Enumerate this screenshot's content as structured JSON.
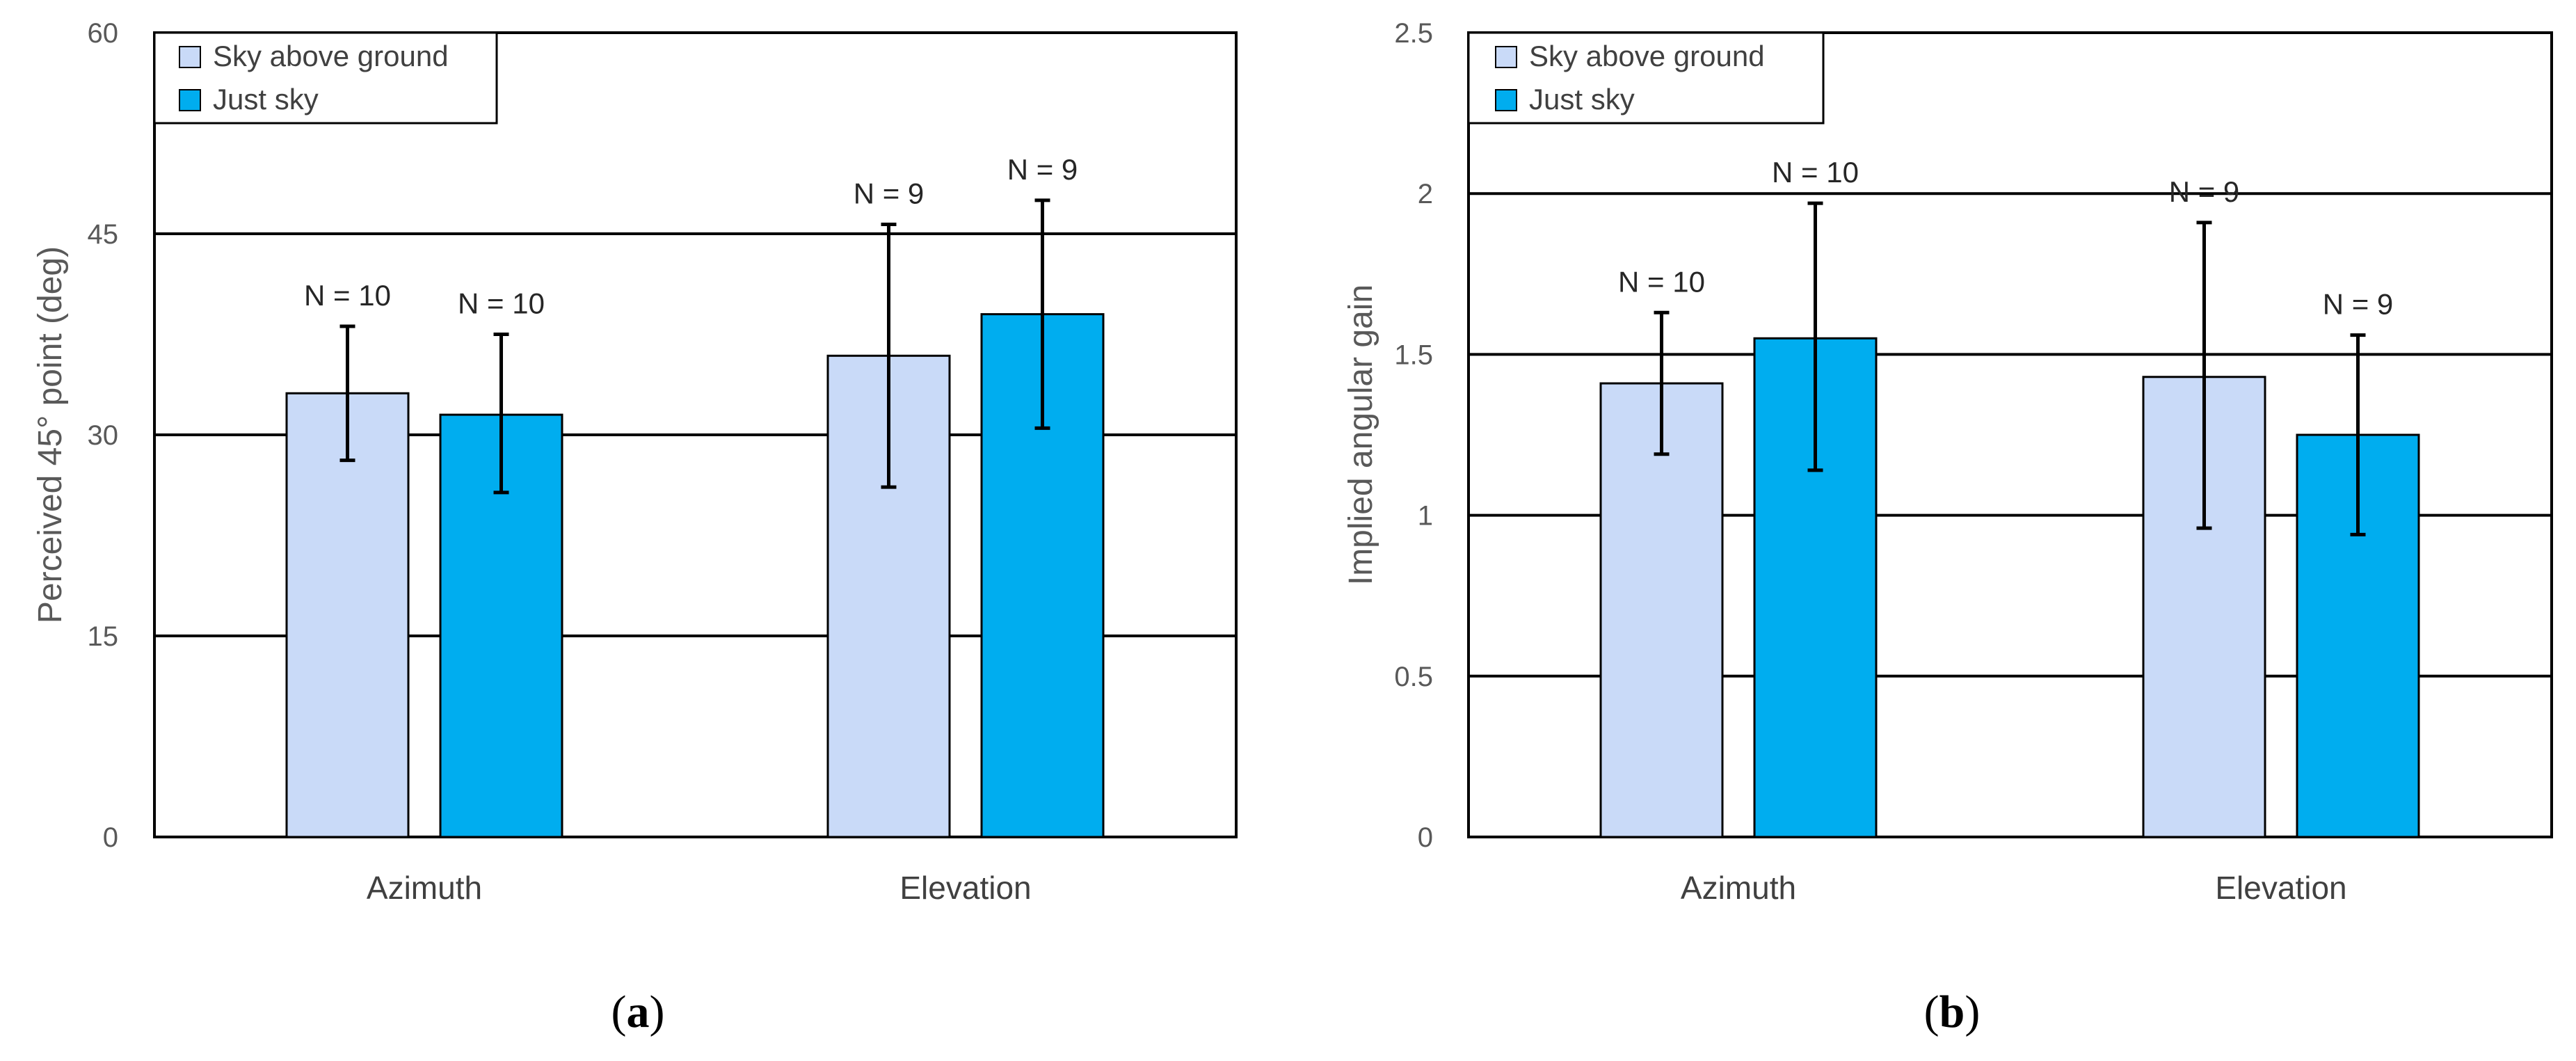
{
  "colors": {
    "sky_above_ground": "#c9daf8",
    "just_sky": "#00adef",
    "axis": "#000000",
    "grid": "#000000"
  },
  "chart_data": [
    {
      "type": "bar",
      "panel_label": "a",
      "ylabel": "Perceived 45° point (deg)",
      "xlabel": "",
      "ylim": [
        0,
        60
      ],
      "yticks": [
        0,
        15,
        30,
        45,
        60
      ],
      "ytick_labels": [
        "0",
        "15",
        "30",
        "45",
        "60"
      ],
      "grid": true,
      "legend_position": "top-left",
      "categories": [
        "Azimuth",
        "Elevation"
      ],
      "series": [
        {
          "name": "Sky above ground",
          "color_key": "sky_above_ground",
          "values": [
            33.1,
            35.9
          ],
          "err_low": [
            28.1,
            26.1
          ],
          "err_high": [
            38.1,
            45.7
          ],
          "n_labels": [
            "N = 10",
            "N = 9"
          ]
        },
        {
          "name": "Just sky",
          "color_key": "just_sky",
          "values": [
            31.5,
            39.0
          ],
          "err_low": [
            25.7,
            30.5
          ],
          "err_high": [
            37.5,
            47.5
          ],
          "n_labels": [
            "N = 10",
            "N = 9"
          ]
        }
      ]
    },
    {
      "type": "bar",
      "panel_label": "b",
      "ylabel": "Implied angular gain",
      "xlabel": "",
      "ylim": [
        0,
        2.5
      ],
      "yticks": [
        0,
        0.5,
        1,
        1.5,
        2,
        2.5
      ],
      "ytick_labels": [
        "0",
        "0.5",
        "1",
        "1.5",
        "2",
        "2.5"
      ],
      "grid": true,
      "legend_position": "top-left",
      "categories": [
        "Azimuth",
        "Elevation"
      ],
      "series": [
        {
          "name": "Sky above ground",
          "color_key": "sky_above_ground",
          "values": [
            1.41,
            1.43
          ],
          "err_low": [
            1.19,
            0.96
          ],
          "err_high": [
            1.63,
            1.91
          ],
          "n_labels": [
            "N = 10",
            "N = 9"
          ]
        },
        {
          "name": "Just sky",
          "color_key": "just_sky",
          "values": [
            1.55,
            1.25
          ],
          "err_low": [
            1.14,
            0.94
          ],
          "err_high": [
            1.97,
            1.56
          ],
          "n_labels": [
            "N = 10",
            "N = 9"
          ]
        }
      ]
    }
  ]
}
